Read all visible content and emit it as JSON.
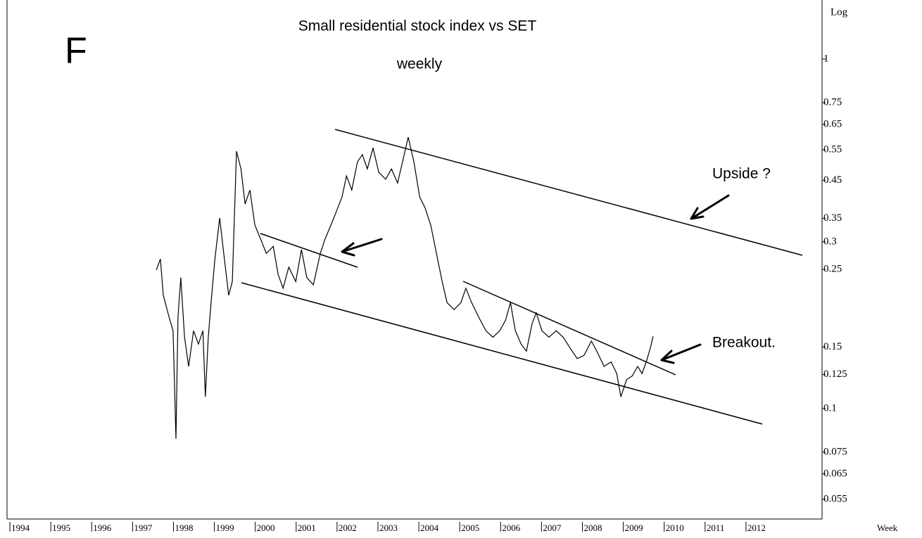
{
  "chart_data": {
    "type": "line",
    "title": "Small residential stock index vs SET",
    "subtitle": "weekly",
    "panel_label": "F",
    "y_scale_label": "Log",
    "x_label": "Week",
    "annotations": [
      "Upside ?",
      "Breakout."
    ],
    "log_y": true,
    "xlim": [
      1993.93,
      2013.86
    ],
    "xticks": [
      1994,
      1995,
      1996,
      1997,
      1998,
      1999,
      2000,
      2001,
      2002,
      2003,
      2004,
      2005,
      2006,
      2007,
      2008,
      2009,
      2010,
      2011,
      2012
    ],
    "ylim": [
      0.0483,
      1.476
    ],
    "yticks": [
      1,
      0.75,
      0.65,
      0.55,
      0.45,
      0.35,
      0.3,
      0.25,
      0.15,
      0.125,
      0.1,
      0.075,
      0.065,
      0.055
    ],
    "x": [
      1997.58,
      1997.68,
      1997.75,
      1997.89,
      1997.99,
      1998.06,
      1998.11,
      1998.18,
      1998.27,
      1998.37,
      1998.49,
      1998.61,
      1998.72,
      1998.78,
      1998.85,
      1998.92,
      1999.01,
      1999.13,
      1999.23,
      1999.35,
      1999.44,
      1999.54,
      1999.65,
      1999.75,
      1999.87,
      1999.99,
      2000.13,
      2000.27,
      2000.44,
      2000.56,
      2000.68,
      2000.82,
      2000.99,
      2001.13,
      2001.26,
      2001.42,
      2001.59,
      2001.71,
      2001.85,
      2001.99,
      2002.12,
      2002.23,
      2002.36,
      2002.5,
      2002.62,
      2002.74,
      2002.88,
      2003.02,
      2003.19,
      2003.33,
      2003.48,
      2003.6,
      2003.74,
      2003.88,
      2004.02,
      2004.15,
      2004.29,
      2004.43,
      2004.57,
      2004.69,
      2004.86,
      2005.03,
      2005.15,
      2005.29,
      2005.46,
      2005.64,
      2005.81,
      2005.98,
      2006.12,
      2006.24,
      2006.36,
      2006.5,
      2006.63,
      2006.77,
      2006.87,
      2007.01,
      2007.18,
      2007.36,
      2007.53,
      2007.7,
      2007.87,
      2008.04,
      2008.22,
      2008.35,
      2008.53,
      2008.7,
      2008.84,
      2008.94,
      2009.08,
      2009.22,
      2009.35,
      2009.46,
      2009.56,
      2009.66,
      2009.73
    ],
    "series": [
      {
        "color": "#000000",
        "values": [
          0.249,
          0.268,
          0.211,
          0.183,
          0.167,
          0.082,
          0.183,
          0.237,
          0.16,
          0.132,
          0.167,
          0.153,
          0.167,
          0.108,
          0.16,
          0.201,
          0.266,
          0.351,
          0.278,
          0.211,
          0.231,
          0.545,
          0.485,
          0.385,
          0.422,
          0.335,
          0.306,
          0.278,
          0.291,
          0.242,
          0.221,
          0.254,
          0.231,
          0.285,
          0.237,
          0.226,
          0.278,
          0.306,
          0.335,
          0.368,
          0.403,
          0.463,
          0.422,
          0.508,
          0.533,
          0.485,
          0.557,
          0.474,
          0.453,
          0.485,
          0.442,
          0.508,
          0.598,
          0.508,
          0.403,
          0.376,
          0.335,
          0.278,
          0.231,
          0.201,
          0.192,
          0.201,
          0.221,
          0.201,
          0.183,
          0.167,
          0.16,
          0.167,
          0.179,
          0.201,
          0.167,
          0.153,
          0.146,
          0.175,
          0.188,
          0.167,
          0.16,
          0.167,
          0.16,
          0.149,
          0.139,
          0.142,
          0.156,
          0.146,
          0.132,
          0.136,
          0.126,
          0.108,
          0.121,
          0.124,
          0.132,
          0.126,
          0.136,
          0.149,
          0.161
        ]
      }
    ]
  }
}
